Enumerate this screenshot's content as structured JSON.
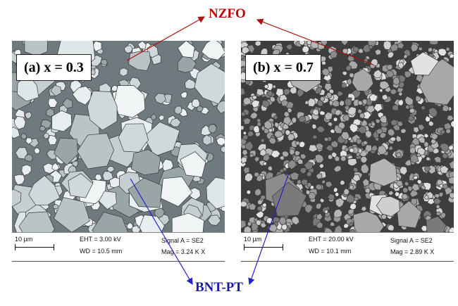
{
  "labels": {
    "top": "NZFO",
    "bottom": "BNT-PT"
  },
  "colors": {
    "top_label": "#c00000",
    "top_arrows": "#b01010",
    "bottom_label": "#1a1aa8",
    "bottom_arrows": "#2222cc"
  },
  "panels": [
    {
      "badge": "(a) x = 0.3",
      "scale": "10 µm",
      "eht": "EHT = 3.00 kV",
      "wd": "WD = 10.5 mm",
      "signal": "Signal A = SE2",
      "mag": "Mag = 3.24 K X"
    },
    {
      "badge": "(b) x = 0.7",
      "scale": "10 µm",
      "eht": "EHT = 20.00 kV",
      "wd": "WD = 10.1 mm",
      "signal": "Signal A = SE2",
      "mag": "Mag = 2.89 K X"
    }
  ]
}
